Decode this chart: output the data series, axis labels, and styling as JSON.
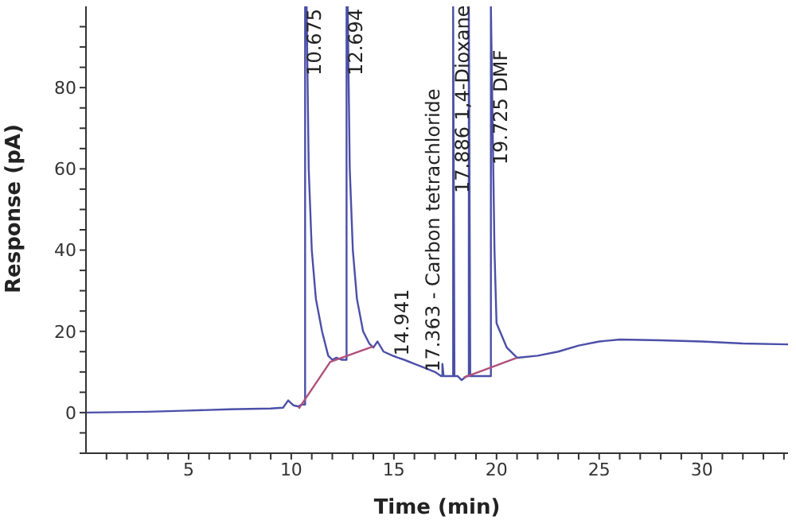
{
  "chart_data": {
    "type": "line",
    "xlabel": "Time (min)",
    "ylabel": "Response (pA)",
    "xlim": [
      0,
      34.2
    ],
    "ylim": [
      -10,
      100
    ],
    "xticks": [
      {
        "value": 1,
        "label": null
      },
      {
        "value": 2,
        "label": null
      },
      {
        "value": 3,
        "label": null
      },
      {
        "value": 4,
        "label": null
      },
      5,
      {
        "value": 6,
        "label": null
      },
      {
        "value": 7,
        "label": null
      },
      {
        "value": 8,
        "label": null
      },
      {
        "value": 9,
        "label": null
      },
      10,
      {
        "value": 11,
        "label": null
      },
      {
        "value": 12,
        "label": null
      },
      {
        "value": 13,
        "label": null
      },
      {
        "value": 14,
        "label": null
      },
      15,
      {
        "value": 16,
        "label": null
      },
      {
        "value": 17,
        "label": null
      },
      {
        "value": 18,
        "label": null
      },
      {
        "value": 19,
        "label": null
      },
      20,
      {
        "value": 21,
        "label": null
      },
      {
        "value": 22,
        "label": null
      },
      {
        "value": 23,
        "label": null
      },
      {
        "value": 24,
        "label": null
      },
      25,
      {
        "value": 26,
        "label": null
      },
      {
        "value": 27,
        "label": null
      },
      {
        "value": 28,
        "label": null
      },
      {
        "value": 29,
        "label": null
      },
      30,
      {
        "value": 31,
        "label": null
      },
      {
        "value": 32,
        "label": null
      },
      {
        "value": 33,
        "label": null
      },
      {
        "value": 34,
        "label": null
      }
    ],
    "yticks": [
      {
        "value": -10,
        "label": null
      },
      {
        "value": -5,
        "label": null
      },
      0,
      {
        "value": 5,
        "label": null
      },
      {
        "value": 10,
        "label": null
      },
      {
        "value": 15,
        "label": null
      },
      20,
      {
        "value": 25,
        "label": null
      },
      {
        "value": 30,
        "label": null
      },
      {
        "value": 35,
        "label": null
      },
      40,
      {
        "value": 45,
        "label": null
      },
      {
        "value": 50,
        "label": null
      },
      {
        "value": 55,
        "label": null
      },
      60,
      {
        "value": 65,
        "label": null
      },
      {
        "value": 70,
        "label": null
      },
      {
        "value": 75,
        "label": null
      },
      80,
      {
        "value": 85,
        "label": null
      },
      {
        "value": 90,
        "label": null
      },
      {
        "value": 95,
        "label": null
      }
    ],
    "grid": false,
    "marker": "none",
    "line_style": "solid",
    "series": [
      {
        "color": "#4b4fa8",
        "x": [
          0,
          3,
          5,
          7,
          9,
          9.6,
          9.85,
          10.1,
          10.35,
          10.5,
          10.675,
          10.675,
          10.75,
          10.85,
          11.0,
          11.2,
          11.5,
          11.8,
          12.0,
          12.2,
          12.45,
          12.694,
          12.694,
          12.75,
          12.85,
          13.0,
          13.2,
          13.5,
          13.8,
          14.0,
          14.2,
          14.5,
          14.941,
          15.2,
          15.5,
          16,
          16.5,
          17,
          17.3,
          17.363,
          17.363,
          17.42,
          17.5,
          17.886,
          17.886,
          17.95,
          18.1,
          18.3,
          18.55,
          18.65,
          18.65,
          18.72,
          19.3,
          19.725,
          19.725,
          19.9,
          20.0,
          20.5,
          21.0,
          22,
          23,
          24,
          25,
          26,
          28,
          30,
          32,
          34.2
        ],
        "values": [
          0,
          0.2,
          0.5,
          0.8,
          1,
          1.2,
          3,
          1.8,
          1.5,
          2,
          2,
          100,
          100,
          60,
          40,
          28,
          20,
          14,
          13,
          13.5,
          13,
          13,
          100,
          100,
          60,
          40,
          28,
          20,
          17,
          16,
          17.5,
          15,
          14,
          13.5,
          13,
          12,
          11,
          10,
          9,
          9,
          12,
          9,
          9,
          9,
          100,
          9,
          9,
          8,
          9,
          9,
          100,
          9,
          9,
          9,
          100,
          40,
          22,
          16,
          13.5,
          14,
          15,
          16.5,
          17.5,
          18,
          17.8,
          17.5,
          17,
          16.8
        ]
      },
      {
        "type": "line",
        "color": "#b0507a",
        "x": [
          10.37,
          11.9,
          14.0
        ],
        "values": [
          1,
          12.5,
          16.3
        ]
      },
      {
        "type": "line",
        "color": "#b0507a",
        "x": [
          18.4,
          21.0
        ],
        "values": [
          8.6,
          13.5
        ]
      }
    ],
    "annotations": [
      {
        "text": "10.675",
        "x": 10.675,
        "y": 83
      },
      {
        "text": "12.694",
        "x": 12.694,
        "y": 83
      },
      {
        "text": "14.941",
        "x": 14.941,
        "y": 14
      },
      {
        "text": "17.363 - Carbon tetrachloride",
        "x": 17.363,
        "y": 10
      },
      {
        "text": "17.886 1,4-Dioxane",
        "x": 17.886,
        "y": 54
      },
      {
        "text": "19.725 DMF",
        "x": 19.725,
        "y": 61
      }
    ]
  }
}
